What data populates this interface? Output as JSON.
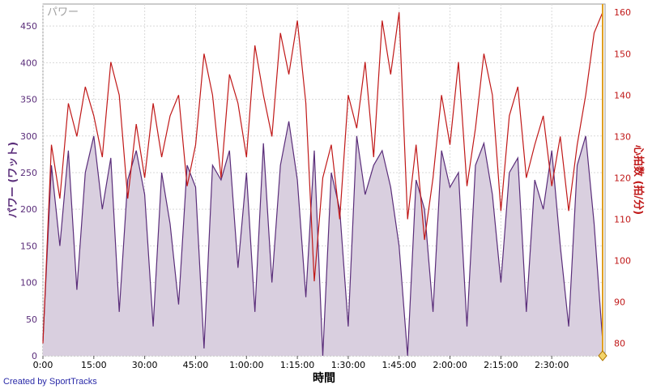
{
  "credit": "Created by SportTracks",
  "chart_data": {
    "type": "line",
    "title": "パワー",
    "xlabel": "時間",
    "ylabel_left": "パワー (ワット)",
    "ylabel_right": "心拍数 (拍/分)",
    "x_range": [
      0,
      9900
    ],
    "ylim_left": [
      0,
      480
    ],
    "ylim_right": [
      77,
      162
    ],
    "x_ticks": [
      "0:00",
      "15:00",
      "30:00",
      "45:00",
      "1:00:00",
      "1:15:00",
      "1:30:00",
      "1:45:00",
      "2:00:00",
      "2:15:00",
      "2:30:00"
    ],
    "x_tick_seconds": [
      0,
      900,
      1800,
      2700,
      3600,
      4500,
      5400,
      6300,
      7200,
      8100,
      9000
    ],
    "y_ticks_left": [
      0,
      50,
      100,
      150,
      200,
      250,
      300,
      350,
      400,
      450
    ],
    "y_ticks_right": [
      80,
      90,
      100,
      110,
      120,
      130,
      140,
      150,
      160
    ],
    "grid": true,
    "colors": {
      "power": "#5a2d7a",
      "power_fill": "#d9cfdf",
      "heart_rate": "#c01818",
      "marker": "#e0a020"
    },
    "series": [
      {
        "name": "パワー",
        "axis": "left",
        "x": [
          0,
          150,
          300,
          450,
          600,
          750,
          900,
          1050,
          1200,
          1350,
          1500,
          1650,
          1800,
          1950,
          2100,
          2250,
          2400,
          2550,
          2700,
          2850,
          3000,
          3150,
          3300,
          3450,
          3600,
          3750,
          3900,
          4050,
          4200,
          4350,
          4500,
          4650,
          4800,
          4950,
          5100,
          5250,
          5400,
          5550,
          5700,
          5850,
          6000,
          6150,
          6300,
          6450,
          6600,
          6750,
          6900,
          7050,
          7200,
          7350,
          7500,
          7650,
          7800,
          7950,
          8100,
          8250,
          8400,
          8550,
          8700,
          8850,
          9000,
          9150,
          9300,
          9450,
          9600,
          9750,
          9900
        ],
        "values": [
          20,
          260,
          150,
          280,
          90,
          250,
          300,
          200,
          270,
          60,
          240,
          280,
          220,
          40,
          250,
          180,
          70,
          260,
          230,
          10,
          260,
          240,
          280,
          120,
          250,
          60,
          290,
          100,
          260,
          320,
          240,
          80,
          280,
          0,
          250,
          200,
          40,
          300,
          220,
          260,
          280,
          230,
          150,
          0,
          240,
          200,
          60,
          280,
          230,
          250,
          40,
          260,
          290,
          220,
          100,
          250,
          270,
          60,
          240,
          200,
          280,
          150,
          40,
          260,
          300,
          180,
          20
        ]
      },
      {
        "name": "心拍数",
        "axis": "right",
        "x": [
          0,
          150,
          300,
          450,
          600,
          750,
          900,
          1050,
          1200,
          1350,
          1500,
          1650,
          1800,
          1950,
          2100,
          2250,
          2400,
          2550,
          2700,
          2850,
          3000,
          3150,
          3300,
          3450,
          3600,
          3750,
          3900,
          4050,
          4200,
          4350,
          4500,
          4650,
          4800,
          4950,
          5100,
          5250,
          5400,
          5550,
          5700,
          5850,
          6000,
          6150,
          6300,
          6450,
          6600,
          6750,
          6900,
          7050,
          7200,
          7350,
          7500,
          7650,
          7800,
          7950,
          8100,
          8250,
          8400,
          8550,
          8700,
          8850,
          9000,
          9150,
          9300,
          9450,
          9600,
          9750,
          9900
        ],
        "values": [
          80,
          128,
          115,
          138,
          130,
          142,
          135,
          125,
          148,
          140,
          115,
          133,
          120,
          138,
          125,
          135,
          140,
          118,
          128,
          150,
          140,
          120,
          145,
          138,
          125,
          152,
          140,
          130,
          155,
          145,
          158,
          138,
          95,
          120,
          128,
          110,
          140,
          132,
          148,
          125,
          158,
          145,
          160,
          110,
          128,
          105,
          120,
          140,
          128,
          148,
          118,
          132,
          150,
          140,
          112,
          135,
          142,
          120,
          128,
          135,
          118,
          130,
          112,
          128,
          140,
          155,
          160
        ]
      }
    ]
  }
}
